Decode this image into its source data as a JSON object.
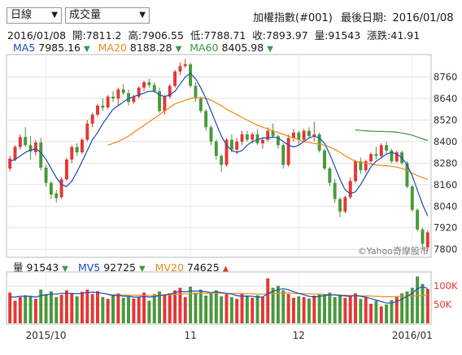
{
  "controls": {
    "period_select": "日線",
    "indicator_select": "成交量",
    "title": "加權指數(#001)",
    "last_date_label": "最後日期:",
    "last_date": "2016/01/08"
  },
  "quote_line": {
    "date": "2016/01/08",
    "open_label": "開:",
    "open": "7811.2",
    "high_label": "高:",
    "high": "7906.55",
    "low_label": "低:",
    "low": "7788.71",
    "close_label": "收:",
    "close": "7893.97",
    "vol_label": "量:",
    "vol": "91543",
    "chg_label": "漲跌:",
    "chg": "41.91"
  },
  "ma_legend": {
    "ma5_label": "MA5",
    "ma5": "7985.16",
    "ma5_arrow": "▼",
    "ma20_label": "MA20",
    "ma20": "8188.28",
    "ma20_arrow": "▼",
    "ma60_label": "MA60",
    "ma60": "8405.98",
    "ma60_arrow": "▼"
  },
  "vol_legend": {
    "vol_label": "量",
    "vol": "91543",
    "vol_arrow": "▼",
    "mv5_label": "MV5",
    "mv5": "92725",
    "mv5_arrow": "▼",
    "mv20_label": "MV20",
    "mv20": "74625",
    "mv20_arrow": "▲"
  },
  "watermark": "©Yahoo奇摩股市",
  "colors": {
    "up": "#e53935",
    "down": "#4a9a3c",
    "ma5": "#1f4fbf",
    "ma20": "#f08a1c",
    "ma60": "#3d9a46"
  },
  "chart_data": {
    "type": "candlestick",
    "price_axis": {
      "ticks": [
        7800,
        7920,
        8040,
        8160,
        8280,
        8400,
        8520,
        8640,
        8760
      ],
      "ylim": [
        7760,
        8880
      ]
    },
    "volume_axis": {
      "ticks": [
        "100K",
        "50K"
      ],
      "ylim": [
        0,
        135000
      ]
    },
    "x_axis": {
      "labels": [
        "2015/10",
        "11",
        "12",
        "2016/01"
      ]
    },
    "grid": true,
    "candles": [
      [
        8250,
        8320,
        8235,
        8305
      ],
      [
        8300,
        8380,
        8290,
        8370
      ],
      [
        8370,
        8440,
        8355,
        8425
      ],
      [
        8425,
        8480,
        8370,
        8380
      ],
      [
        8380,
        8430,
        8300,
        8345
      ],
      [
        8340,
        8410,
        8320,
        8395
      ],
      [
        8395,
        8420,
        8240,
        8255
      ],
      [
        8255,
        8270,
        8150,
        8170
      ],
      [
        8170,
        8180,
        8080,
        8105
      ],
      [
        8110,
        8130,
        8060,
        8085
      ],
      [
        8090,
        8200,
        8080,
        8190
      ],
      [
        8190,
        8310,
        8180,
        8300
      ],
      [
        8300,
        8380,
        8280,
        8370
      ],
      [
        8370,
        8390,
        8320,
        8340
      ],
      [
        8340,
        8420,
        8330,
        8410
      ],
      [
        8410,
        8520,
        8400,
        8500
      ],
      [
        8500,
        8560,
        8480,
        8550
      ],
      [
        8550,
        8610,
        8540,
        8600
      ],
      [
        8600,
        8640,
        8570,
        8590
      ],
      [
        8590,
        8660,
        8580,
        8650
      ],
      [
        8650,
        8680,
        8620,
        8640
      ],
      [
        8640,
        8700,
        8600,
        8690
      ],
      [
        8690,
        8720,
        8660,
        8670
      ],
      [
        8670,
        8690,
        8600,
        8620
      ],
      [
        8620,
        8660,
        8610,
        8650
      ],
      [
        8650,
        8710,
        8640,
        8700
      ],
      [
        8700,
        8740,
        8680,
        8730
      ],
      [
        8730,
        8750,
        8700,
        8715
      ],
      [
        8715,
        8730,
        8670,
        8680
      ],
      [
        8680,
        8700,
        8560,
        8570
      ],
      [
        8570,
        8660,
        8550,
        8650
      ],
      [
        8650,
        8720,
        8640,
        8710
      ],
      [
        8710,
        8800,
        8700,
        8790
      ],
      [
        8790,
        8840,
        8770,
        8820
      ],
      [
        8820,
        8860,
        8810,
        8830
      ],
      [
        8830,
        8840,
        8700,
        8710
      ],
      [
        8710,
        8730,
        8620,
        8640
      ],
      [
        8640,
        8650,
        8560,
        8570
      ],
      [
        8570,
        8580,
        8460,
        8480
      ],
      [
        8480,
        8490,
        8380,
        8400
      ],
      [
        8400,
        8410,
        8300,
        8320
      ],
      [
        8320,
        8330,
        8230,
        8270
      ],
      [
        8270,
        8420,
        8260,
        8410
      ],
      [
        8410,
        8440,
        8340,
        8355
      ],
      [
        8355,
        8420,
        8330,
        8400
      ],
      [
        8400,
        8460,
        8380,
        8440
      ],
      [
        8440,
        8460,
        8400,
        8410
      ],
      [
        8410,
        8450,
        8390,
        8440
      ],
      [
        8440,
        8470,
        8380,
        8390
      ],
      [
        8390,
        8420,
        8360,
        8410
      ],
      [
        8410,
        8480,
        8400,
        8460
      ],
      [
        8460,
        8500,
        8420,
        8430
      ],
      [
        8430,
        8440,
        8360,
        8380
      ],
      [
        8380,
        8390,
        8250,
        8270
      ],
      [
        8270,
        8440,
        8260,
        8420
      ],
      [
        8420,
        8470,
        8400,
        8450
      ],
      [
        8450,
        8460,
        8380,
        8410
      ],
      [
        8410,
        8470,
        8400,
        8460
      ],
      [
        8460,
        8480,
        8420,
        8430
      ],
      [
        8430,
        8510,
        8400,
        8440
      ],
      [
        8440,
        8450,
        8340,
        8350
      ],
      [
        8350,
        8360,
        8240,
        8250
      ],
      [
        8250,
        8260,
        8150,
        8170
      ],
      [
        8170,
        8190,
        8060,
        8080
      ],
      [
        8080,
        8090,
        7980,
        8010
      ],
      [
        8010,
        8100,
        8000,
        8090
      ],
      [
        8090,
        8200,
        8080,
        8180
      ],
      [
        8180,
        8300,
        8170,
        8290
      ],
      [
        8290,
        8310,
        8220,
        8240
      ],
      [
        8240,
        8300,
        8230,
        8290
      ],
      [
        8290,
        8340,
        8280,
        8330
      ],
      [
        8330,
        8370,
        8300,
        8320
      ],
      [
        8320,
        8390,
        8310,
        8380
      ],
      [
        8380,
        8400,
        8330,
        8350
      ],
      [
        8350,
        8360,
        8280,
        8290
      ],
      [
        8290,
        8350,
        8280,
        8340
      ],
      [
        8340,
        8350,
        8270,
        8280
      ],
      [
        8280,
        8290,
        8140,
        8150
      ],
      [
        8150,
        8160,
        8010,
        8020
      ],
      [
        8020,
        8030,
        7900,
        7910
      ],
      [
        7911,
        7920,
        7800,
        7830
      ],
      [
        7811,
        7907,
        7789,
        7894
      ]
    ],
    "volume": [
      82000,
      60000,
      70000,
      75000,
      72000,
      65000,
      90000,
      78000,
      85000,
      70000,
      76000,
      88000,
      80000,
      72000,
      84000,
      90000,
      78000,
      86000,
      70000,
      65000,
      74000,
      80000,
      68000,
      72000,
      66000,
      70000,
      82000,
      60000,
      78000,
      85000,
      75000,
      80000,
      88000,
      95000,
      70000,
      98000,
      82000,
      90000,
      74000,
      80000,
      88000,
      72000,
      78000,
      70000,
      65000,
      80000,
      72000,
      68000,
      75000,
      70000,
      120000,
      95000,
      100000,
      88000,
      78000,
      68000,
      72000,
      70000,
      66000,
      74000,
      78000,
      76000,
      82000,
      70000,
      74000,
      68000,
      72000,
      80000,
      65000,
      70000,
      52000,
      60000,
      45000,
      50000,
      62000,
      70000,
      80000,
      85000,
      95000,
      125000,
      105000,
      91543
    ],
    "ma5": [
      8290,
      8300,
      8320,
      8340,
      8352,
      8360,
      8340,
      8300,
      8250,
      8200,
      8160,
      8150,
      8180,
      8230,
      8290,
      8350,
      8410,
      8450,
      8500,
      8540,
      8580,
      8600,
      8620,
      8640,
      8650,
      8660,
      8670,
      8680,
      8680,
      8660,
      8650,
      8660,
      8680,
      8720,
      8760,
      8780,
      8750,
      8700,
      8640,
      8570,
      8500,
      8430,
      8380,
      8350,
      8340,
      8350,
      8380,
      8400,
      8410,
      8420,
      8420,
      8425,
      8420,
      8400,
      8380,
      8370,
      8380,
      8400,
      8420,
      8430,
      8420,
      8390,
      8330,
      8260,
      8190,
      8130,
      8110,
      8120,
      8160,
      8210,
      8260,
      8290,
      8310,
      8330,
      8340,
      8330,
      8310,
      8270,
      8210,
      8130,
      8050,
      7985
    ],
    "ma20": [
      null,
      null,
      null,
      null,
      null,
      null,
      null,
      null,
      null,
      null,
      null,
      null,
      null,
      null,
      null,
      null,
      null,
      null,
      null,
      8380,
      8390,
      8400,
      8415,
      8430,
      8450,
      8470,
      8490,
      8510,
      8530,
      8550,
      8570,
      8590,
      8610,
      8620,
      8630,
      8640,
      8645,
      8645,
      8640,
      8630,
      8615,
      8600,
      8580,
      8565,
      8550,
      8535,
      8520,
      8505,
      8490,
      8480,
      8470,
      8460,
      8450,
      8440,
      8430,
      8420,
      8410,
      8400,
      8395,
      8390,
      8385,
      8380,
      8370,
      8355,
      8340,
      8320,
      8305,
      8290,
      8285,
      8280,
      8275,
      8270,
      8268,
      8265,
      8262,
      8258,
      8250,
      8240,
      8225,
      8210,
      8200,
      8188
    ],
    "ma60": [
      null,
      null,
      null,
      null,
      null,
      null,
      null,
      null,
      null,
      null,
      null,
      null,
      null,
      null,
      null,
      null,
      null,
      null,
      null,
      null,
      null,
      null,
      null,
      null,
      null,
      null,
      null,
      null,
      null,
      null,
      null,
      null,
      null,
      null,
      null,
      null,
      null,
      null,
      null,
      null,
      null,
      null,
      null,
      null,
      null,
      null,
      null,
      null,
      null,
      null,
      null,
      null,
      null,
      null,
      null,
      null,
      null,
      null,
      null,
      null,
      null,
      null,
      null,
      null,
      null,
      null,
      null,
      8465,
      8462,
      8460,
      8458,
      8457,
      8456,
      8455,
      8454,
      8452,
      8448,
      8442,
      8435,
      8425,
      8415,
      8406
    ],
    "mv5": [
      70000,
      70000,
      72000,
      72000,
      72000,
      70000,
      74000,
      76000,
      78000,
      78000,
      80000,
      80000,
      80000,
      79000,
      80000,
      82000,
      83000,
      82000,
      80000,
      78000,
      74000,
      75000,
      72000,
      72000,
      70000,
      70000,
      72000,
      70000,
      71000,
      74000,
      76000,
      78000,
      82000,
      85000,
      84000,
      86000,
      86000,
      86000,
      84000,
      82000,
      84000,
      82000,
      80000,
      78000,
      74000,
      72000,
      73000,
      72000,
      70000,
      70000,
      80000,
      85000,
      90000,
      92000,
      90000,
      84000,
      80000,
      76000,
      72000,
      70000,
      72000,
      74000,
      76000,
      76000,
      74000,
      73000,
      72000,
      74000,
      72000,
      70000,
      66000,
      62000,
      58000,
      54000,
      54000,
      58000,
      64000,
      72000,
      80000,
      92000,
      98000,
      92725
    ],
    "mv20": [
      null,
      null,
      null,
      null,
      null,
      null,
      null,
      null,
      null,
      null,
      null,
      null,
      null,
      null,
      null,
      null,
      null,
      null,
      null,
      76000,
      76000,
      76000,
      75500,
      75000,
      75000,
      75000,
      75000,
      74500,
      74500,
      75000,
      75500,
      76000,
      77000,
      78000,
      78500,
      79000,
      79500,
      80000,
      80000,
      80000,
      80500,
      80500,
      80000,
      80000,
      79500,
      79000,
      79000,
      78500,
      78000,
      78000,
      79000,
      79500,
      80000,
      80500,
      80500,
      80000,
      79500,
      79000,
      78500,
      78000,
      77500,
      77000,
      76500,
      76000,
      75500,
      75000,
      74500,
      74000,
      73500,
      73000,
      72500,
      72000,
      71500,
      71000,
      71000,
      71500,
      72000,
      72500,
      73000,
      73500,
      74000,
      74625
    ]
  }
}
